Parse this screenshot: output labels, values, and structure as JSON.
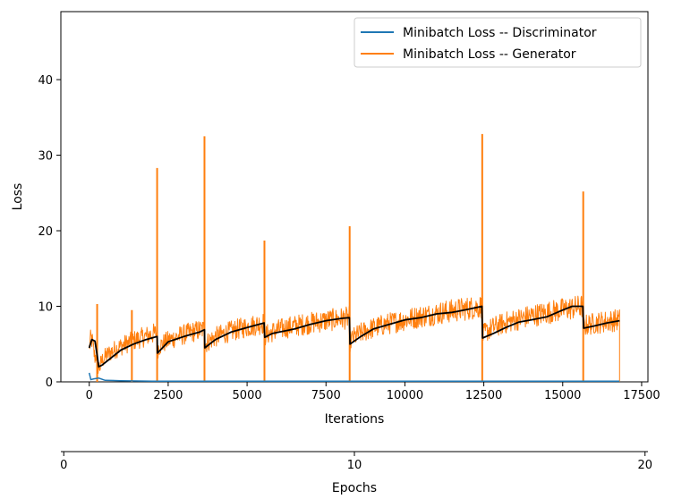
{
  "chart_data": {
    "type": "line",
    "xlabel": "Iterations",
    "ylabel": "Loss",
    "xlim": [
      -900,
      17700
    ],
    "ylim": [
      0,
      49
    ],
    "x_ticks": [
      0,
      2500,
      5000,
      7500,
      10000,
      12500,
      15000,
      17500
    ],
    "x_tick_labels": [
      "0",
      "2500",
      "5000",
      "7500",
      "10000",
      "12500",
      "15000",
      "17500"
    ],
    "y_ticks": [
      0,
      10,
      20,
      30,
      40
    ],
    "y_tick_labels": [
      "0",
      "10",
      "20",
      "30",
      "40"
    ],
    "grid": false,
    "legend_position": "top-right",
    "secondary_axis": {
      "label": "Epochs",
      "xlim": [
        -0.1,
        20.1
      ],
      "ticks": [
        0,
        10,
        20
      ],
      "tick_labels": [
        "0",
        "10",
        "20"
      ]
    },
    "series": [
      {
        "name": "Minibatch Loss -- Discriminator",
        "color": "#1f77b4",
        "x": [
          0,
          50,
          150,
          300,
          500,
          1000,
          2000,
          4000,
          8000,
          12000,
          16800
        ],
        "y": [
          1.2,
          0.3,
          0.4,
          0.5,
          0.2,
          0.15,
          0.1,
          0.1,
          0.1,
          0.1,
          0.1
        ]
      },
      {
        "name": "Minibatch Loss -- Generator",
        "color": "#ff7f0e",
        "segments": [
          {
            "x_start": 0,
            "x_end": 2150,
            "start": 4.5,
            "end": 6.5,
            "base_low": 1.5,
            "base_high": 2.0
          },
          {
            "x_start": 2150,
            "x_end": 3650,
            "start": 4.0,
            "end": 7.0
          },
          {
            "x_start": 3650,
            "x_end": 5550,
            "start": 4.5,
            "end": 7.8
          },
          {
            "x_start": 5550,
            "x_end": 8250,
            "start": 5.8,
            "end": 8.5
          },
          {
            "x_start": 8250,
            "x_end": 12450,
            "start": 5.0,
            "end": 10.0
          },
          {
            "x_start": 12450,
            "x_end": 15650,
            "start": 5.8,
            "end": 10.0
          },
          {
            "x_start": 15650,
            "x_end": 16800,
            "start": 7.2,
            "end": 8.2
          }
        ],
        "spikes": [
          {
            "x": 250,
            "y": 10.3
          },
          {
            "x": 1350,
            "y": 9.5
          },
          {
            "x": 2150,
            "y": 28.3
          },
          {
            "x": 3650,
            "y": 32.5
          },
          {
            "x": 5550,
            "y": 18.7
          },
          {
            "x": 8250,
            "y": 20.6
          },
          {
            "x": 12450,
            "y": 32.8
          },
          {
            "x": 15650,
            "y": 25.2
          }
        ]
      },
      {
        "color": "#000000",
        "x": [
          0,
          80,
          180,
          250,
          300,
          400,
          700,
          1000,
          1400,
          1800,
          2150,
          2160,
          2500,
          3000,
          3500,
          3650,
          3660,
          4000,
          4500,
          5000,
          5540,
          5560,
          5800,
          6500,
          7000,
          7500,
          8000,
          8240,
          8260,
          8600,
          9000,
          9500,
          10000,
          10500,
          11000,
          11500,
          12000,
          12440,
          12460,
          12800,
          13200,
          13600,
          14000,
          14500,
          15000,
          15300,
          15640,
          15660,
          16000,
          16400,
          16800
        ],
        "y": [
          4.5,
          5.6,
          5.4,
          3.5,
          2.0,
          2.2,
          3.2,
          4.2,
          5.0,
          5.6,
          6.0,
          3.8,
          5.3,
          6.0,
          6.6,
          6.9,
          4.5,
          5.6,
          6.6,
          7.2,
          7.8,
          5.9,
          6.4,
          7.0,
          7.6,
          8.1,
          8.4,
          8.5,
          5.0,
          6.0,
          7.0,
          7.6,
          8.2,
          8.5,
          9.0,
          9.2,
          9.6,
          10.0,
          5.8,
          6.4,
          7.2,
          7.9,
          8.2,
          8.6,
          9.5,
          10.0,
          10.0,
          7.1,
          7.4,
          7.8,
          8.1
        ]
      }
    ]
  }
}
